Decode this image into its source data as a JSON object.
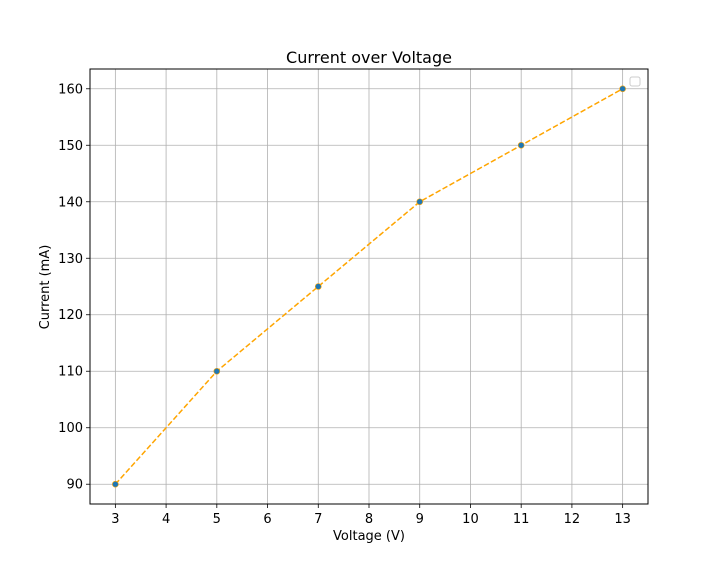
{
  "chart_data": {
    "type": "line",
    "title": "Current over Voltage",
    "xlabel": "Voltage (V)",
    "ylabel": "Current (mA)",
    "x": [
      3,
      5,
      7,
      9,
      11,
      13
    ],
    "series": [
      {
        "values": [
          90,
          110,
          125,
          140,
          150,
          160
        ]
      }
    ],
    "xlim": [
      2.5,
      13.5
    ],
    "ylim": [
      86.5,
      163.5
    ],
    "xticks": [
      3,
      4,
      5,
      6,
      7,
      8,
      9,
      10,
      11,
      12,
      13
    ],
    "yticks": [
      90,
      100,
      110,
      120,
      130,
      140,
      150,
      160
    ],
    "grid": true,
    "legend": {
      "position": "top-right",
      "entries": []
    },
    "colors": {
      "line": "#ffa500",
      "marker": "#1f77b4",
      "grid": "#b0b0b0"
    },
    "line_style": "dashed"
  }
}
